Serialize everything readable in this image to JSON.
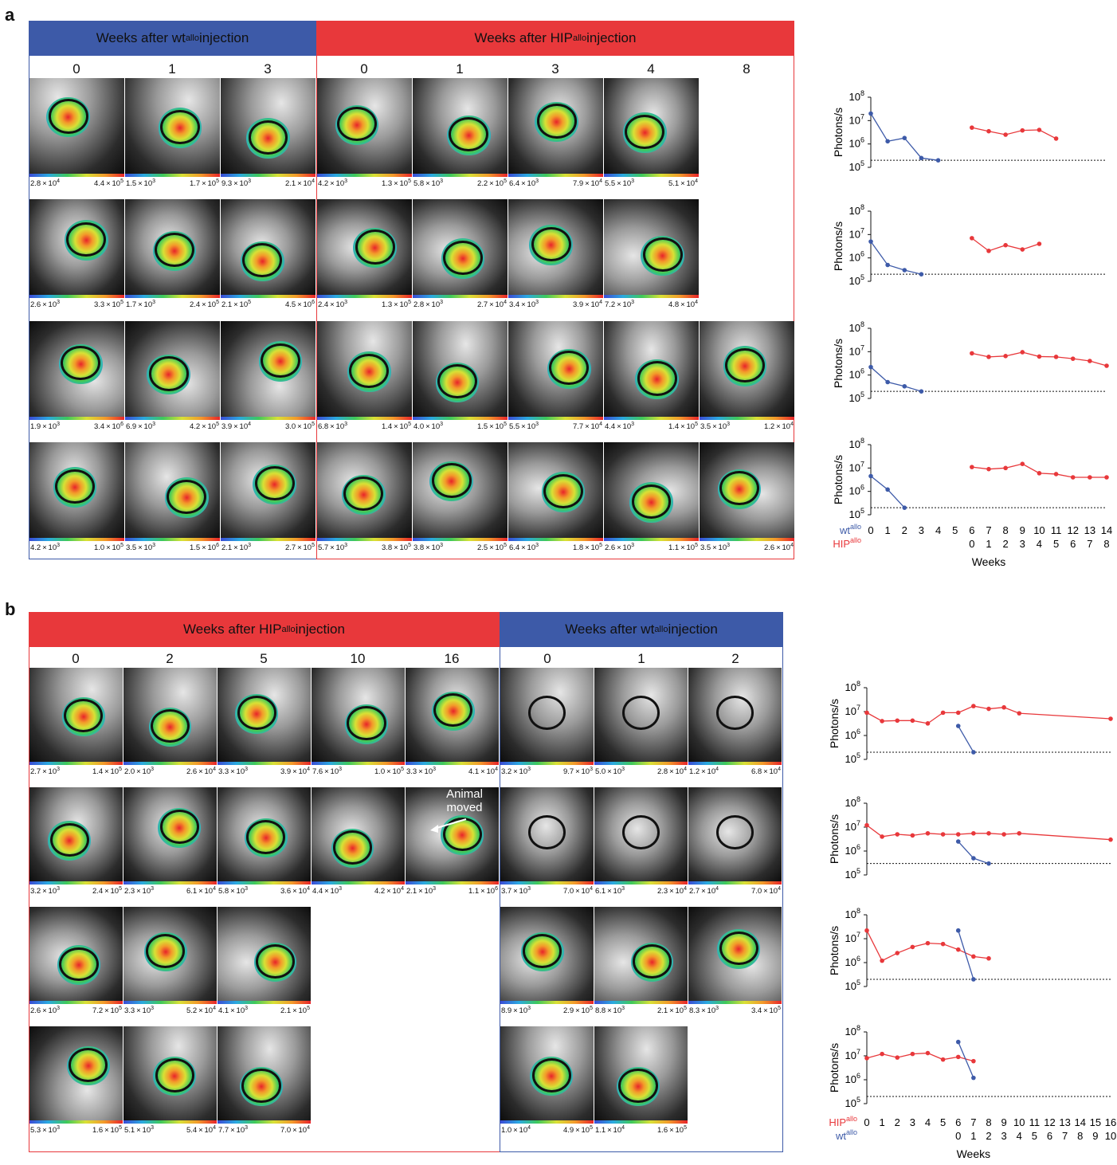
{
  "panel_a": {
    "letter": "a",
    "banner_wt": {
      "pre": "Weeks after wt",
      "sup": "allo",
      "post": " injection"
    },
    "banner_hip": {
      "pre": "Weeks after HIP",
      "sup": "allo",
      "post": " injection"
    },
    "weeks_wt": [
      "0",
      "1",
      "3"
    ],
    "weeks_hip": [
      "0",
      "1",
      "3",
      "4",
      "8"
    ],
    "rows": [
      {
        "wt": [
          [
            "2.8",
            "4",
            "4.4",
            "5"
          ],
          [
            "1.5",
            "3",
            "1.7",
            "5"
          ],
          [
            "9.3",
            "3",
            "2.1",
            "4"
          ]
        ],
        "hip": [
          [
            "4.2",
            "3",
            "1.3",
            "5"
          ],
          [
            "5.8",
            "3",
            "2.2",
            "5"
          ],
          [
            "6.4",
            "3",
            "7.9",
            "4"
          ],
          [
            "5.5",
            "3",
            "5.1",
            "4"
          ]
        ]
      },
      {
        "wt": [
          [
            "2.6",
            "3",
            "3.3",
            "5"
          ],
          [
            "1.7",
            "3",
            "2.4",
            "5"
          ],
          [
            "2.1",
            "5",
            "4.5",
            "6"
          ]
        ],
        "hip": [
          [
            "2.4",
            "3",
            "1.3",
            "5"
          ],
          [
            "2.8",
            "3",
            "2.7",
            "4"
          ],
          [
            "3.4",
            "3",
            "3.9",
            "4"
          ],
          [
            "7.2",
            "3",
            "4.8",
            "4"
          ]
        ]
      },
      {
        "wt": [
          [
            "1.9",
            "3",
            "3.4",
            "6"
          ],
          [
            "6.9",
            "3",
            "4.2",
            "5"
          ],
          [
            "3.9",
            "4",
            "3.0",
            "5"
          ]
        ],
        "hip": [
          [
            "6.8",
            "3",
            "1.4",
            "5"
          ],
          [
            "4.0",
            "3",
            "1.5",
            "5"
          ],
          [
            "5.5",
            "3",
            "7.7",
            "4"
          ],
          [
            "4.4",
            "3",
            "1.4",
            "5"
          ],
          [
            "3.5",
            "3",
            "1.2",
            "4"
          ]
        ]
      },
      {
        "wt": [
          [
            "4.2",
            "3",
            "1.0",
            "5"
          ],
          [
            "3.5",
            "3",
            "1.5",
            "6"
          ],
          [
            "2.1",
            "3",
            "2.7",
            "5"
          ]
        ],
        "hip": [
          [
            "5.7",
            "3",
            "3.8",
            "5"
          ],
          [
            "3.8",
            "3",
            "2.5",
            "5"
          ],
          [
            "6.4",
            "3",
            "1.8",
            "5"
          ],
          [
            "2.6",
            "3",
            "1.1",
            "5"
          ],
          [
            "3.5",
            "3",
            "2.6",
            "4"
          ]
        ]
      }
    ],
    "xaxis_row1_label": {
      "name": "wt",
      "sup": "allo"
    },
    "xaxis_row2_label": {
      "name": "HIP",
      "sup": "allo"
    },
    "xaxis_row1": [
      "0",
      "1",
      "2",
      "3",
      "4",
      "5",
      "6",
      "7",
      "8",
      "9",
      "10",
      "11",
      "12",
      "13",
      "14"
    ],
    "xaxis_row2": [
      "0",
      "1",
      "2",
      "3",
      "4",
      "5",
      "6",
      "7",
      "8"
    ],
    "xlabel": "Weeks"
  },
  "panel_b": {
    "letter": "b",
    "banner_hip": {
      "pre": "Weeks after HIP",
      "sup": "allo",
      "post": " injection"
    },
    "banner_wt": {
      "pre": "Weeks after wt",
      "sup": "allo",
      "post": " injection"
    },
    "weeks_hip": [
      "0",
      "2",
      "5",
      "10",
      "16"
    ],
    "weeks_wt": [
      "0",
      "1",
      "2"
    ],
    "note": "Animal moved",
    "rows": [
      {
        "hip": [
          [
            "2.7",
            "3",
            "1.4",
            "5"
          ],
          [
            "2.0",
            "3",
            "2.6",
            "4"
          ],
          [
            "3.3",
            "3",
            "3.9",
            "4"
          ],
          [
            "7.6",
            "3",
            "1.0",
            "5"
          ],
          [
            "3.3",
            "3",
            "4.1",
            "4"
          ]
        ],
        "wt": [
          [
            "3.2",
            "3",
            "9.7",
            "3"
          ],
          [
            "5.0",
            "3",
            "2.8",
            "4"
          ],
          [
            "1.2",
            "4",
            "6.8",
            "4"
          ]
        ]
      },
      {
        "hip": [
          [
            "3.2",
            "3",
            "2.4",
            "5"
          ],
          [
            "2.3",
            "3",
            "6.1",
            "4"
          ],
          [
            "5.8",
            "3",
            "3.6",
            "4"
          ],
          [
            "4.4",
            "3",
            "4.2",
            "4"
          ],
          [
            "2.1",
            "3",
            "1.1",
            "6"
          ]
        ],
        "wt": [
          [
            "3.7",
            "3",
            "7.0",
            "4"
          ],
          [
            "6.1",
            "3",
            "2.3",
            "4"
          ],
          [
            "2.7",
            "4",
            "7.0",
            "4"
          ]
        ]
      },
      {
        "hip": [
          [
            "2.6",
            "3",
            "7.2",
            "5"
          ],
          [
            "3.3",
            "3",
            "5.2",
            "4"
          ],
          [
            "4.1",
            "3",
            "2.1",
            "5"
          ]
        ],
        "wt": [
          [
            "8.9",
            "3",
            "2.9",
            "5"
          ],
          [
            "8.8",
            "3",
            "2.1",
            "5"
          ],
          [
            "8.3",
            "3",
            "3.4",
            "5"
          ]
        ]
      },
      {
        "hip": [
          [
            "5.3",
            "3",
            "1.6",
            "5"
          ],
          [
            "5.1",
            "3",
            "5.4",
            "4"
          ],
          [
            "7.7",
            "3",
            "7.0",
            "4"
          ]
        ],
        "wt": [
          [
            "1.0",
            "4",
            "4.9",
            "5"
          ],
          [
            "1.1",
            "4",
            "1.6",
            "5"
          ]
        ]
      }
    ],
    "xaxis_row1_label": {
      "name": "HIP",
      "sup": "allo"
    },
    "xaxis_row2_label": {
      "name": "wt",
      "sup": "allo"
    },
    "xaxis_row1": [
      "0",
      "1",
      "2",
      "3",
      "4",
      "5",
      "6",
      "7",
      "8",
      "9",
      "10",
      "11",
      "12",
      "13",
      "14",
      "15",
      "16"
    ],
    "xaxis_row2": [
      "0",
      "1",
      "2",
      "3",
      "4",
      "5",
      "6",
      "7",
      "8",
      "9",
      "10"
    ],
    "xlabel": "Weeks"
  },
  "colors": {
    "wt": "#3d5aa8",
    "hip": "#e8383b"
  },
  "chart_data": [
    {
      "type": "line",
      "panel": "a",
      "ylabel": "Photons/s",
      "yscale": "log",
      "ylim": [
        100000,
        100000000
      ],
      "yticks": [
        "10^5",
        "10^6",
        "10^7",
        "10^8"
      ],
      "threshold": 200000,
      "series": [
        {
          "name": "wt allo",
          "x": [
            0,
            1,
            2,
            3,
            4
          ],
          "values": [
            20000000,
            1300000,
            1800000,
            250000,
            200000
          ]
        },
        {
          "name": "HIP allo",
          "x": [
            6,
            7,
            8,
            9,
            10,
            11
          ],
          "values": [
            5000000,
            3500000,
            2500000,
            3800000,
            4000000,
            1700000
          ]
        }
      ]
    },
    {
      "type": "line",
      "panel": "a",
      "ylabel": "Photons/s",
      "yscale": "log",
      "ylim": [
        100000,
        100000000
      ],
      "yticks": [
        "10^5",
        "10^6",
        "10^7",
        "10^8"
      ],
      "threshold": 200000,
      "series": [
        {
          "name": "wt allo",
          "x": [
            0,
            1,
            2,
            3
          ],
          "values": [
            5000000,
            500000,
            300000,
            200000
          ]
        },
        {
          "name": "HIP allo",
          "x": [
            6,
            7,
            8,
            9,
            10
          ],
          "values": [
            7000000,
            2000000,
            3500000,
            2300000,
            4000000
          ]
        }
      ]
    },
    {
      "type": "line",
      "panel": "a",
      "ylabel": "Photons/s",
      "yscale": "log",
      "ylim": [
        100000,
        100000000
      ],
      "yticks": [
        "10^5",
        "10^6",
        "10^7",
        "10^8"
      ],
      "threshold": 200000,
      "series": [
        {
          "name": "wt allo",
          "x": [
            0,
            1,
            2,
            3
          ],
          "values": [
            2200000,
            500000,
            330000,
            200000
          ]
        },
        {
          "name": "HIP allo",
          "x": [
            6,
            7,
            8,
            9,
            10,
            11,
            12,
            13,
            14
          ],
          "values": [
            8500000,
            6000000,
            6500000,
            9500000,
            6200000,
            6000000,
            5000000,
            4000000,
            2500000
          ]
        }
      ]
    },
    {
      "type": "line",
      "panel": "a",
      "ylabel": "Photons/s",
      "yscale": "log",
      "ylim": [
        100000,
        100000000
      ],
      "yticks": [
        "10^5",
        "10^6",
        "10^7",
        "10^8"
      ],
      "threshold": 200000,
      "series": [
        {
          "name": "wt allo",
          "x": [
            0,
            1,
            2
          ],
          "values": [
            4500000,
            1200000,
            200000
          ]
        },
        {
          "name": "HIP allo",
          "x": [
            6,
            7,
            8,
            9,
            10,
            11,
            12,
            13,
            14
          ],
          "values": [
            11000000,
            9000000,
            10000000,
            15000000,
            6000000,
            5500000,
            4000000,
            4000000,
            4000000
          ]
        }
      ]
    },
    {
      "type": "line",
      "panel": "b",
      "ylabel": "Photons/s",
      "yscale": "log",
      "ylim": [
        100000,
        100000000
      ],
      "yticks": [
        "10^5",
        "10^6",
        "10^7",
        "10^8"
      ],
      "threshold": 200000,
      "series": [
        {
          "name": "HIP allo",
          "x": [
            0,
            1,
            2,
            3,
            4,
            5,
            6,
            7,
            8,
            9,
            10,
            16
          ],
          "values": [
            9000000,
            4000000,
            4200000,
            4200000,
            3200000,
            9000000,
            9000000,
            17000000,
            13000000,
            15000000,
            8500000,
            5000000
          ]
        },
        {
          "name": "wt allo",
          "x": [
            6,
            7
          ],
          "values": [
            2500000,
            200000
          ]
        }
      ]
    },
    {
      "type": "line",
      "panel": "b",
      "ylabel": "Photons/s",
      "yscale": "log",
      "ylim": [
        100000,
        100000000
      ],
      "yticks": [
        "10^5",
        "10^6",
        "10^7",
        "10^8"
      ],
      "threshold": 300000,
      "series": [
        {
          "name": "HIP allo",
          "x": [
            0,
            1,
            2,
            3,
            4,
            5,
            6,
            7,
            8,
            9,
            10,
            16
          ],
          "values": [
            12000000,
            4000000,
            5000000,
            4500000,
            5500000,
            5000000,
            5000000,
            5500000,
            5500000,
            5000000,
            5500000,
            3000000
          ]
        },
        {
          "name": "wt allo",
          "x": [
            6,
            7,
            8
          ],
          "values": [
            2500000,
            500000,
            300000
          ]
        }
      ]
    },
    {
      "type": "line",
      "panel": "b",
      "ylabel": "Photons/s",
      "yscale": "log",
      "ylim": [
        100000,
        100000000
      ],
      "yticks": [
        "10^5",
        "10^6",
        "10^7",
        "10^8"
      ],
      "threshold": 200000,
      "series": [
        {
          "name": "HIP allo",
          "x": [
            0,
            1,
            2,
            3,
            4,
            5,
            6,
            7,
            8
          ],
          "values": [
            22000000,
            1200000,
            2500000,
            4500000,
            6500000,
            6000000,
            3500000,
            1800000,
            1500000
          ]
        },
        {
          "name": "wt allo",
          "x": [
            6,
            7
          ],
          "values": [
            22000000,
            200000
          ]
        }
      ]
    },
    {
      "type": "line",
      "panel": "b",
      "ylabel": "Photons/s",
      "yscale": "log",
      "ylim": [
        100000,
        100000000
      ],
      "yticks": [
        "10^5",
        "10^6",
        "10^7",
        "10^8"
      ],
      "threshold": 200000,
      "series": [
        {
          "name": "HIP allo",
          "x": [
            0,
            1,
            2,
            3,
            4,
            5,
            6,
            7
          ],
          "values": [
            8000000,
            12000000,
            8500000,
            12000000,
            13000000,
            7000000,
            9000000,
            6000000
          ]
        },
        {
          "name": "wt allo",
          "x": [
            6,
            7
          ],
          "values": [
            38000000,
            1200000
          ]
        }
      ]
    }
  ]
}
